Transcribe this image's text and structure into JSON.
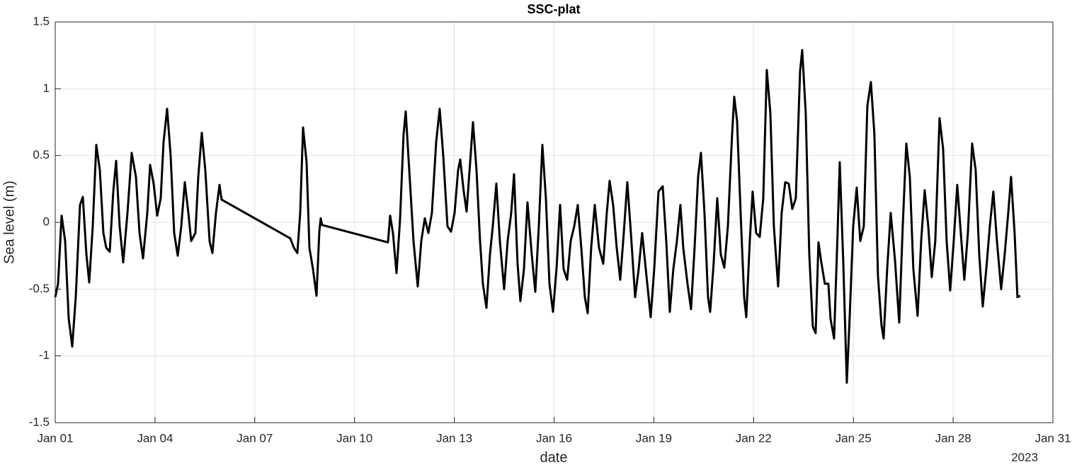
{
  "chart_data": {
    "type": "line",
    "title": "SSC-plat",
    "xlabel": "date",
    "ylabel": "Sea level (m)",
    "xlabel_year": "2023",
    "color": "#000000",
    "grid": true,
    "xlim": [
      1,
      31
    ],
    "ylim": [
      -1.5,
      1.5
    ],
    "xticks": [
      {
        "value": 1,
        "label": "Jan 01"
      },
      {
        "value": 4,
        "label": "Jan 04"
      },
      {
        "value": 7,
        "label": "Jan 07"
      },
      {
        "value": 10,
        "label": "Jan 10"
      },
      {
        "value": 13,
        "label": "Jan 13"
      },
      {
        "value": 16,
        "label": "Jan 16"
      },
      {
        "value": 19,
        "label": "Jan 19"
      },
      {
        "value": 22,
        "label": "Jan 22"
      },
      {
        "value": 25,
        "label": "Jan 25"
      },
      {
        "value": 28,
        "label": "Jan 28"
      },
      {
        "value": 31,
        "label": "Jan 31"
      }
    ],
    "yticks": [
      -1.5,
      -1,
      -0.5,
      0,
      0.5,
      1,
      1.5
    ],
    "x": [
      1.0,
      1.085,
      1.192,
      1.298,
      1.405,
      1.511,
      1.617,
      1.745,
      1.83,
      1.937,
      2.022,
      2.128,
      2.235,
      2.341,
      2.448,
      2.533,
      2.639,
      2.746,
      2.831,
      2.937,
      3.044,
      3.172,
      3.299,
      3.427,
      3.534,
      3.64,
      3.768,
      3.853,
      3.959,
      4.066,
      4.172,
      4.257,
      4.364,
      4.47,
      4.577,
      4.683,
      4.79,
      4.896,
      5.003,
      5.088,
      5.215,
      5.301,
      5.407,
      5.513,
      5.641,
      5.726,
      5.833,
      5.939,
      6.003,
      8.068,
      8.175,
      8.281,
      8.366,
      8.452,
      8.558,
      8.643,
      8.75,
      8.856,
      8.941,
      8.984,
      9.026,
      11.006,
      11.07,
      11.155,
      11.262,
      11.368,
      11.475,
      11.539,
      11.645,
      11.773,
      11.9,
      12.007,
      12.113,
      12.22,
      12.326,
      12.454,
      12.56,
      12.667,
      12.795,
      12.901,
      13.008,
      13.114,
      13.178,
      13.284,
      13.369,
      13.476,
      13.561,
      13.668,
      13.774,
      13.859,
      13.966,
      14.072,
      14.157,
      14.264,
      14.37,
      14.498,
      14.604,
      14.711,
      14.796,
      14.902,
      14.987,
      15.094,
      15.2,
      15.328,
      15.435,
      15.541,
      15.648,
      15.754,
      15.861,
      15.967,
      16.073,
      16.18,
      16.286,
      16.393,
      16.499,
      16.606,
      16.712,
      16.818,
      16.925,
      17.01,
      17.116,
      17.223,
      17.351,
      17.478,
      17.585,
      17.67,
      17.776,
      17.883,
      17.989,
      18.096,
      18.202,
      18.309,
      18.437,
      18.543,
      18.649,
      18.777,
      18.905,
      19.011,
      19.139,
      19.267,
      19.373,
      19.48,
      19.586,
      19.693,
      19.799,
      19.884,
      20.012,
      20.118,
      20.225,
      20.331,
      20.416,
      20.523,
      20.629,
      20.693,
      20.8,
      20.906,
      21.013,
      21.119,
      21.226,
      21.353,
      21.417,
      21.502,
      21.609,
      21.715,
      21.779,
      21.885,
      21.97,
      22.077,
      22.183,
      22.29,
      22.396,
      22.503,
      22.609,
      22.737,
      22.843,
      22.95,
      23.056,
      23.163,
      23.269,
      23.397,
      23.461,
      23.567,
      23.674,
      23.78,
      23.865,
      23.95,
      24.036,
      24.142,
      24.248,
      24.312,
      24.419,
      24.525,
      24.589,
      24.696,
      24.802,
      24.887,
      24.994,
      25.1,
      25.207,
      25.313,
      25.42,
      25.526,
      25.632,
      25.739,
      25.845,
      25.909,
      26.016,
      26.122,
      26.25,
      26.378,
      26.484,
      26.591,
      26.697,
      26.803,
      26.931,
      27.038,
      27.144,
      27.251,
      27.357,
      27.463,
      27.591,
      27.698,
      27.804,
      27.911,
      28.017,
      28.123,
      28.23,
      28.336,
      28.443,
      28.571,
      28.677,
      28.784,
      28.89,
      28.996,
      29.103,
      29.209,
      29.316,
      29.443,
      29.55,
      29.656,
      29.741,
      29.848,
      29.933,
      30.018
    ],
    "values": [
      -0.56,
      -0.46,
      0.05,
      -0.14,
      -0.72,
      -0.93,
      -0.56,
      0.13,
      0.19,
      -0.24,
      -0.45,
      -0.03,
      0.58,
      0.39,
      -0.08,
      -0.19,
      -0.22,
      0.23,
      0.46,
      -0.03,
      -0.3,
      0.07,
      0.52,
      0.34,
      -0.08,
      -0.27,
      0.07,
      0.43,
      0.29,
      0.05,
      0.18,
      0.6,
      0.85,
      0.5,
      -0.08,
      -0.25,
      -0.03,
      0.3,
      0.07,
      -0.14,
      -0.08,
      0.34,
      0.67,
      0.39,
      -0.14,
      -0.23,
      0.07,
      0.28,
      0.17,
      -0.12,
      -0.19,
      -0.23,
      0.07,
      0.71,
      0.45,
      -0.19,
      -0.35,
      -0.55,
      -0.07,
      0.03,
      -0.02,
      -0.15,
      0.05,
      -0.08,
      -0.38,
      0.02,
      0.66,
      0.83,
      0.39,
      -0.14,
      -0.48,
      -0.14,
      0.03,
      -0.08,
      0.07,
      0.6,
      0.85,
      0.5,
      -0.03,
      -0.07,
      0.07,
      0.39,
      0.47,
      0.23,
      0.08,
      0.45,
      0.75,
      0.39,
      -0.14,
      -0.46,
      -0.64,
      -0.24,
      -0.03,
      0.29,
      -0.14,
      -0.5,
      -0.14,
      0.07,
      0.36,
      -0.31,
      -0.59,
      -0.35,
      0.15,
      -0.24,
      -0.52,
      -0.03,
      0.58,
      0.18,
      -0.46,
      -0.67,
      -0.35,
      0.13,
      -0.35,
      -0.43,
      -0.14,
      -0.03,
      0.13,
      -0.19,
      -0.56,
      -0.68,
      -0.19,
      0.13,
      -0.19,
      -0.31,
      0.07,
      0.31,
      0.13,
      -0.19,
      -0.43,
      -0.08,
      0.3,
      -0.08,
      -0.56,
      -0.35,
      -0.08,
      -0.4,
      -0.71,
      -0.35,
      0.23,
      0.27,
      -0.14,
      -0.67,
      -0.35,
      -0.14,
      0.13,
      -0.19,
      -0.46,
      -0.65,
      -0.19,
      0.34,
      0.52,
      0.07,
      -0.56,
      -0.67,
      -0.3,
      0.18,
      -0.24,
      -0.34,
      -0.03,
      0.66,
      0.94,
      0.76,
      0.07,
      -0.56,
      -0.71,
      -0.14,
      0.23,
      -0.08,
      -0.11,
      0.18,
      1.14,
      0.82,
      -0.03,
      -0.48,
      0.07,
      0.3,
      0.29,
      0.1,
      0.18,
      1.13,
      1.29,
      0.82,
      -0.24,
      -0.78,
      -0.83,
      -0.15,
      -0.3,
      -0.46,
      -0.46,
      -0.72,
      -0.87,
      -0.08,
      0.45,
      -0.3,
      -1.2,
      -0.72,
      -0.03,
      0.26,
      -0.14,
      -0.03,
      0.87,
      1.05,
      0.66,
      -0.4,
      -0.77,
      -0.87,
      -0.35,
      0.07,
      -0.28,
      -0.75,
      -0.03,
      0.59,
      0.34,
      -0.35,
      -0.7,
      -0.14,
      0.24,
      -0.03,
      -0.41,
      -0.14,
      0.78,
      0.55,
      -0.14,
      -0.51,
      -0.14,
      0.28,
      -0.08,
      -0.43,
      -0.08,
      0.59,
      0.39,
      -0.24,
      -0.63,
      -0.35,
      -0.03,
      0.23,
      -0.14,
      -0.5,
      -0.24,
      0.07,
      0.34,
      -0.08,
      -0.56,
      -0.55
    ]
  }
}
